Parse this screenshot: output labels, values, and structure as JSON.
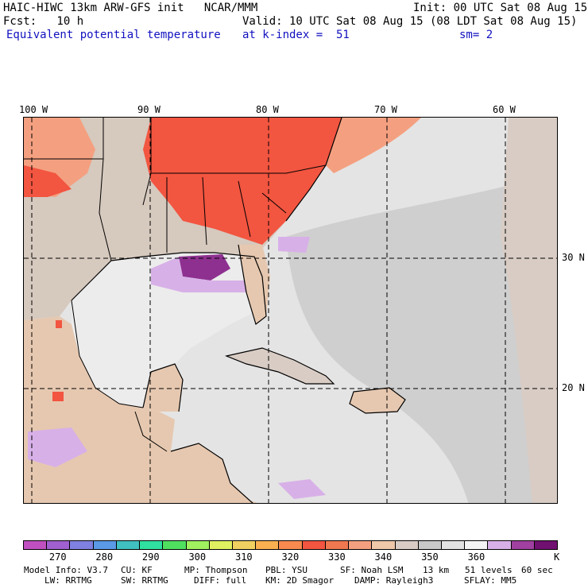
{
  "header": {
    "line1_left": "HAIC-HIWC 13km ARW-GFS init   NCAR/MMM",
    "line1_right": "Init: 00 UTC Sat 08 Aug 15",
    "line2_left": "Fcst:   10 h",
    "line2_right": "Valid: 10 UTC Sat 08 Aug 15 (08 LDT Sat 08 Aug 15)",
    "field_name": "Equivalent potential temperature",
    "level": "at k-index =  51",
    "smoothing": "sm= 2"
  },
  "axes": {
    "lon_labels": [
      "100 W",
      "90 W",
      "80 W",
      "70 W",
      "60 W"
    ],
    "lat_labels": [
      "30 N",
      "20 N"
    ]
  },
  "colorbar": {
    "colors": [
      "#c050c0",
      "#a060d0",
      "#8080e0",
      "#5a9ae6",
      "#40c0c0",
      "#30e0a0",
      "#50e060",
      "#a0f060",
      "#e0f060",
      "#f0d060",
      "#f8b050",
      "#f88a50",
      "#f25540",
      "#f07850",
      "#f4a080",
      "#eec8a8",
      "#d8ccc4",
      "#c8c8c8",
      "#e2e2e2",
      "#f4f4f4",
      "#d8b0e8",
      "#a040a0",
      "#701070"
    ],
    "tick_labels": [
      "270",
      "280",
      "290",
      "300",
      "310",
      "320",
      "330",
      "340",
      "350",
      "360"
    ],
    "unit": "K"
  },
  "footer": {
    "line1": [
      "Model Info: V3.7",
      "CU: KF",
      "MP: Thompson",
      "PBL: YSU",
      "SF: Noah LSM",
      "13 km",
      "51 levels",
      "60 sec"
    ],
    "line2": [
      "LW: RRTMG",
      "SW: RRTMG",
      "DIFF: full",
      "KM: 2D Smagor",
      "DAMP: Rayleigh3",
      "SFLAY: MM5"
    ]
  },
  "map_colors": {
    "ocean_base": "#e4e4e4",
    "grey_band": "#cfcfcf",
    "tan": "#e6c8b0",
    "hot": "#f25540",
    "warm": "#f4a080",
    "purple": "#8e3090",
    "lavender": "#d8b0e8"
  }
}
